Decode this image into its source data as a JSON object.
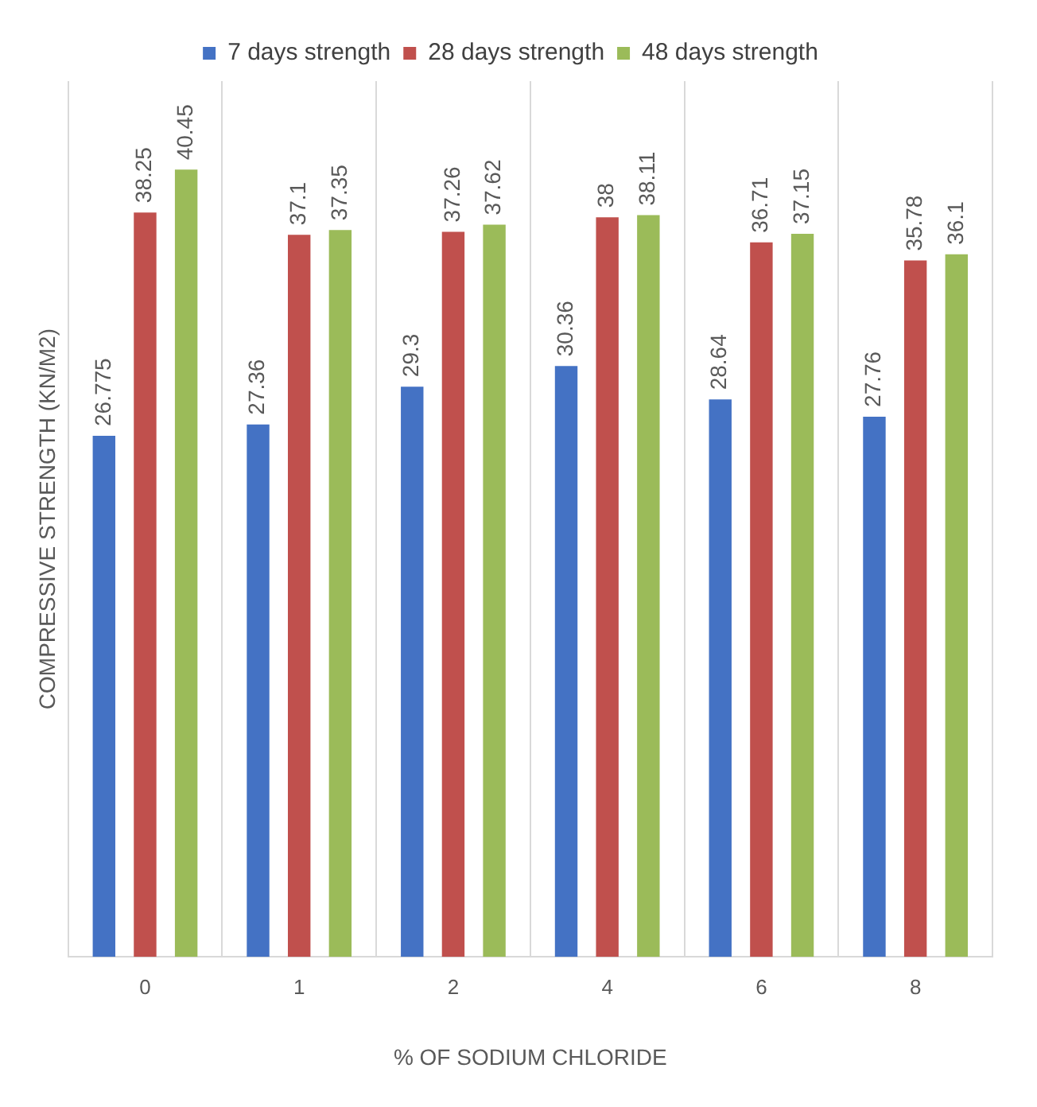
{
  "chart_data": {
    "type": "bar",
    "xlabel": "% OF SODIUM CHLORIDE",
    "ylabel": "COMPRESSIVE STRENGTH (KN/M2)",
    "categories": [
      "0",
      "1",
      "2",
      "4",
      "6",
      "8"
    ],
    "series": [
      {
        "name": "7 days strength",
        "color": "#4472c4",
        "values": [
          26.775,
          27.36,
          29.3,
          30.36,
          28.64,
          27.76
        ]
      },
      {
        "name": "28 days strength",
        "color": "#c0504d",
        "values": [
          38.25,
          37.1,
          37.26,
          38,
          36.71,
          35.78
        ]
      },
      {
        "name": "48 days strength",
        "color": "#9bbb59",
        "values": [
          40.45,
          37.35,
          37.62,
          38.11,
          37.15,
          36.1
        ]
      }
    ],
    "data_labels": true,
    "grid": "x",
    "legend": "top"
  }
}
